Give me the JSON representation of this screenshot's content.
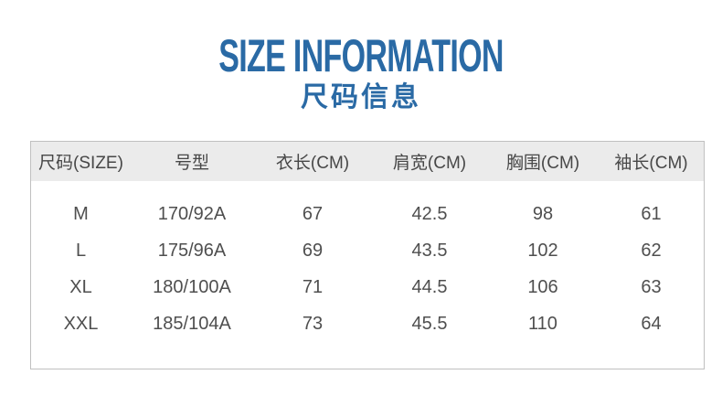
{
  "title": {
    "en": "SIZE INFORMATION",
    "zh": "尺码信息"
  },
  "colors": {
    "accent_blue": "#2a6aa5",
    "header_bg": "#ebebeb",
    "table_border": "#c0c0c0",
    "header_text": "#474747",
    "body_text": "#4f4f4f"
  },
  "size_table": {
    "columns": [
      "尺码(SIZE)",
      "号型",
      "衣长(CM)",
      "肩宽(CM)",
      "胸围(CM)",
      "袖长(CM)"
    ],
    "rows": [
      [
        "M",
        "170/92A",
        "67",
        "42.5",
        "98",
        "61"
      ],
      [
        "L",
        "175/96A",
        "69",
        "43.5",
        "102",
        "62"
      ],
      [
        "XL",
        "180/100A",
        "71",
        "44.5",
        "106",
        "63"
      ],
      [
        "XXL",
        "185/104A",
        "73",
        "45.5",
        "110",
        "64"
      ]
    ]
  }
}
